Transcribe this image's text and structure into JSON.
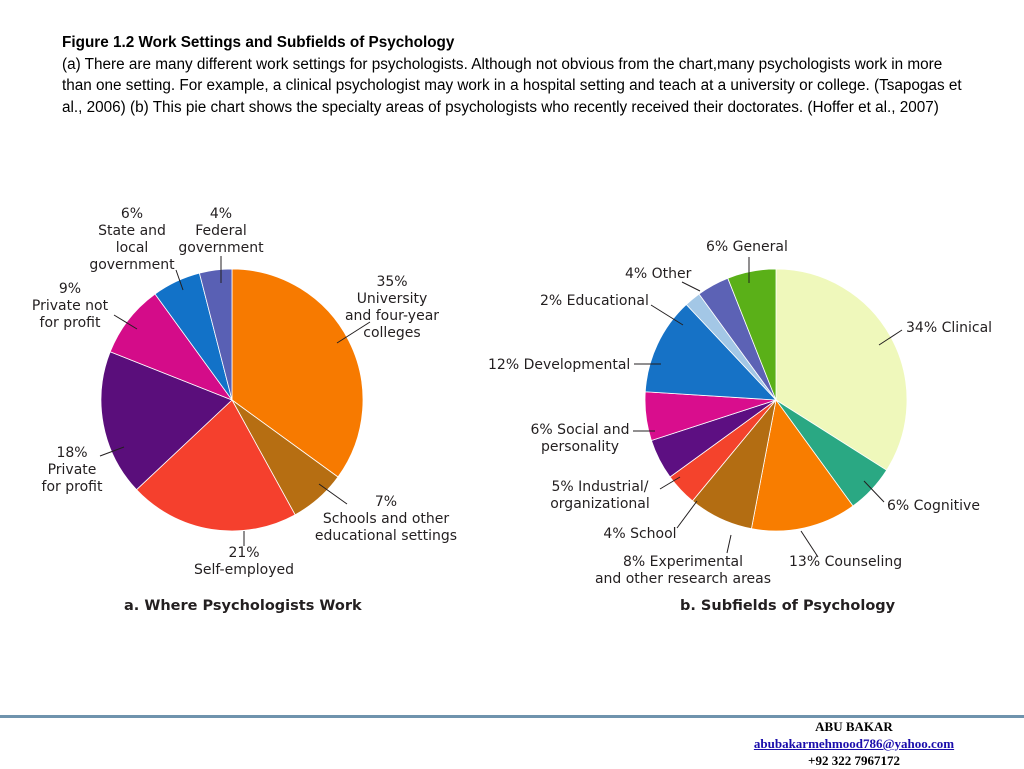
{
  "caption": {
    "title": "Figure 1.2 Work Settings and Subfields of Psychology",
    "text": "(a) There are many different work settings for psychologists. Although not obvious from the chart,many psychologists work in more than one setting. For example, a clinical psychologist may work in a hospital setting and teach at a university or college. (Tsapogas et al., 2006) (b) This pie chart shows the specialty areas of psychologists who recently received their doctorates. (Hoffer et al., 2007)"
  },
  "chart_data": [
    {
      "type": "pie",
      "title": "a. Where Psychologists Work",
      "slices": [
        {
          "name": "University and four-year colleges",
          "value": 35,
          "label": [
            "35%",
            "University",
            "and four-year",
            "colleges"
          ],
          "color": "#f77a00"
        },
        {
          "name": "Schools and other educational settings",
          "value": 7,
          "label": [
            "7%",
            "Schools and other",
            "educational settings"
          ],
          "color": "#b66e12"
        },
        {
          "name": "Self-employed",
          "value": 21,
          "label": [
            "21%",
            "Self-employed"
          ],
          "color": "#f5402d"
        },
        {
          "name": "Private for profit",
          "value": 18,
          "label": [
            "18%",
            "Private",
            "for profit"
          ],
          "color": "#5a0e7b"
        },
        {
          "name": "Private not for profit",
          "value": 9,
          "label": [
            "9%",
            "Private not",
            "for profit"
          ],
          "color": "#d40c89"
        },
        {
          "name": "State and local government",
          "value": 6,
          "label": [
            "6%",
            "State and",
            "local",
            "government"
          ],
          "color": "#1272c8"
        },
        {
          "name": "Federal government",
          "value": 4,
          "label": [
            "4%",
            "Federal",
            "government"
          ],
          "color": "#5960b4"
        }
      ]
    },
    {
      "type": "pie",
      "title": "b. Subfields of Psychology",
      "slices": [
        {
          "name": "Clinical",
          "value": 34,
          "label": [
            "34% Clinical"
          ],
          "color": "#eff8bb"
        },
        {
          "name": "Cognitive",
          "value": 6,
          "label": [
            "6% Cognitive"
          ],
          "color": "#2aa883"
        },
        {
          "name": "Counseling",
          "value": 13,
          "label": [
            "13% Counseling"
          ],
          "color": "#f87d00"
        },
        {
          "name": "Experimental and other research areas",
          "value": 8,
          "label": [
            "8% Experimental",
            "and other research areas"
          ],
          "color": "#b36d12"
        },
        {
          "name": "School",
          "value": 4,
          "label": [
            "4% School"
          ],
          "color": "#f4432c"
        },
        {
          "name": "Industrial/organizational",
          "value": 5,
          "label": [
            "5% Industrial/",
            "organizational"
          ],
          "color": "#5d0f82"
        },
        {
          "name": "Social and personality",
          "value": 6,
          "label": [
            "6% Social and",
            "personality"
          ],
          "color": "#d90d8d"
        },
        {
          "name": "Developmental",
          "value": 12,
          "label": [
            "12% Developmental"
          ],
          "color": "#1672c6"
        },
        {
          "name": "Educational",
          "value": 2,
          "label": [
            "2% Educational"
          ],
          "color": "#a3c7e6"
        },
        {
          "name": "Other",
          "value": 4,
          "label": [
            "4% Other"
          ],
          "color": "#5c62b5"
        },
        {
          "name": "General",
          "value": 6,
          "label": [
            "6% General"
          ],
          "color": "#5ab018"
        }
      ]
    }
  ],
  "footer": {
    "name": "ABU BAKAR",
    "email": "abubakarmehmood786@yahoo.com",
    "phone": "+92 322 7967172"
  }
}
